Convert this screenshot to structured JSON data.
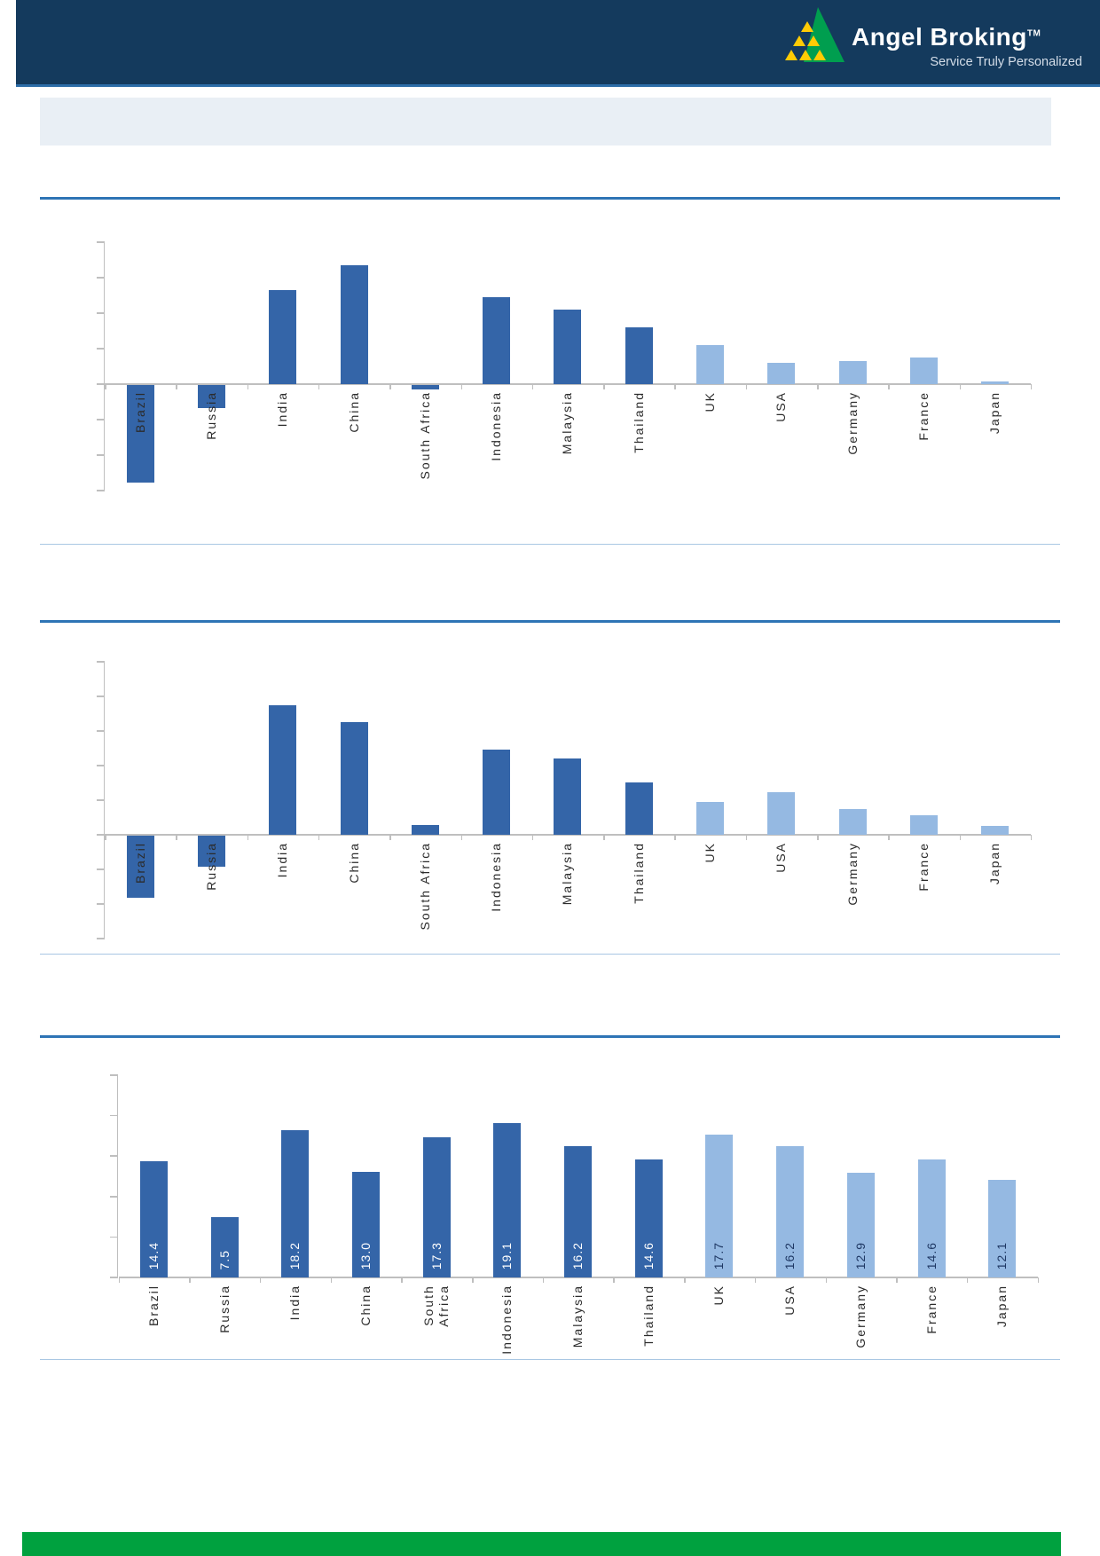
{
  "header": {
    "brand": "Angel Broking",
    "trademark": "TM",
    "tagline": "Service Truly Personalized"
  },
  "colors": {
    "header_navy": "#143a5d",
    "header_edge_blue": "#2d6da8",
    "rule_dark_blue": "#2e74b5",
    "rule_light_blue": "#a9c7e3",
    "axis_gray": "#bfbfbf",
    "emerging_bar_blue": "#3465a8",
    "developed_bar_blue": "#95b9e2",
    "data_label_on_dark": "#ffffff",
    "data_label_on_light": "#1f3864",
    "title_banner_gray": "#e9eff5",
    "footer_green": "#00a13f",
    "logo_green": "#009e4f",
    "logo_yellow": "#ffcb05"
  },
  "categories": [
    "Brazil",
    "Russia",
    "India",
    "China",
    "South Africa",
    "Indonesia",
    "Malaysia",
    "Thailand",
    "UK",
    "USA",
    "Germany",
    "France",
    "Japan"
  ],
  "chart_data": [
    {
      "type": "bar",
      "title": "",
      "xlabel": "",
      "ylabel": "",
      "categories": [
        "Brazil",
        "Russia",
        "India",
        "China",
        "South Africa",
        "Indonesia",
        "Malaysia",
        "Thailand",
        "UK",
        "USA",
        "Germany",
        "France",
        "Japan"
      ],
      "values": [
        -5.5,
        -1.3,
        5.3,
        6.7,
        -0.25,
        4.9,
        4.2,
        3.2,
        2.2,
        1.2,
        1.3,
        1.5,
        0.15
      ],
      "ylim": [
        -6,
        8
      ],
      "gridline_step": 2,
      "y_axis_tick_labels_visible": false,
      "grid": false,
      "legend": "none",
      "palette": [
        "#3465a8",
        "#3465a8",
        "#3465a8",
        "#3465a8",
        "#3465a8",
        "#3465a8",
        "#3465a8",
        "#3465a8",
        "#95b9e2",
        "#95b9e2",
        "#95b9e2",
        "#95b9e2",
        "#95b9e2"
      ],
      "show_data_labels": false,
      "wrap_labels": false
    },
    {
      "type": "bar",
      "title": "",
      "xlabel": "",
      "ylabel": "",
      "categories": [
        "Brazil",
        "Russia",
        "India",
        "China",
        "South Africa",
        "Indonesia",
        "Malaysia",
        "Thailand",
        "UK",
        "USA",
        "Germany",
        "France",
        "Japan"
      ],
      "values": [
        -3.6,
        -1.8,
        7.5,
        6.5,
        0.55,
        4.9,
        4.4,
        3.05,
        1.9,
        2.45,
        1.5,
        1.15,
        0.5
      ],
      "ylim": [
        -6,
        10
      ],
      "gridline_step": 2,
      "y_axis_tick_labels_visible": false,
      "grid": false,
      "legend": "none",
      "palette": [
        "#3465a8",
        "#3465a8",
        "#3465a8",
        "#3465a8",
        "#3465a8",
        "#3465a8",
        "#3465a8",
        "#3465a8",
        "#95b9e2",
        "#95b9e2",
        "#95b9e2",
        "#95b9e2",
        "#95b9e2"
      ],
      "show_data_labels": false,
      "wrap_labels": false
    },
    {
      "type": "bar",
      "title": "",
      "xlabel": "",
      "ylabel": "",
      "categories": [
        "Brazil",
        "Russia",
        "India",
        "China",
        "South Africa",
        "Indonesia",
        "Malaysia",
        "Thailand",
        "UK",
        "USA",
        "Germany",
        "France",
        "Japan"
      ],
      "values": [
        14.4,
        7.5,
        18.2,
        13.0,
        17.3,
        19.1,
        16.2,
        14.6,
        17.7,
        16.2,
        12.9,
        14.6,
        12.1
      ],
      "data_labels": [
        "14.4",
        "7.5",
        "18.2",
        "13.0",
        "17.3",
        "19.1",
        "16.2",
        "14.6",
        "17.7",
        "16.2",
        "12.9",
        "14.6",
        "12.1"
      ],
      "ylim": [
        0,
        25
      ],
      "gridline_step": 5,
      "y_axis_tick_labels_visible": false,
      "grid": false,
      "legend": "none",
      "palette": [
        "#3465a8",
        "#3465a8",
        "#3465a8",
        "#3465a8",
        "#3465a8",
        "#3465a8",
        "#3465a8",
        "#3465a8",
        "#95b9e2",
        "#95b9e2",
        "#95b9e2",
        "#95b9e2",
        "#95b9e2"
      ],
      "data_label_colors": [
        "#ffffff",
        "#ffffff",
        "#ffffff",
        "#ffffff",
        "#ffffff",
        "#ffffff",
        "#ffffff",
        "#ffffff",
        "#1f3864",
        "#1f3864",
        "#1f3864",
        "#1f3864",
        "#1f3864"
      ],
      "show_data_labels": true,
      "wrap_labels": true
    }
  ]
}
